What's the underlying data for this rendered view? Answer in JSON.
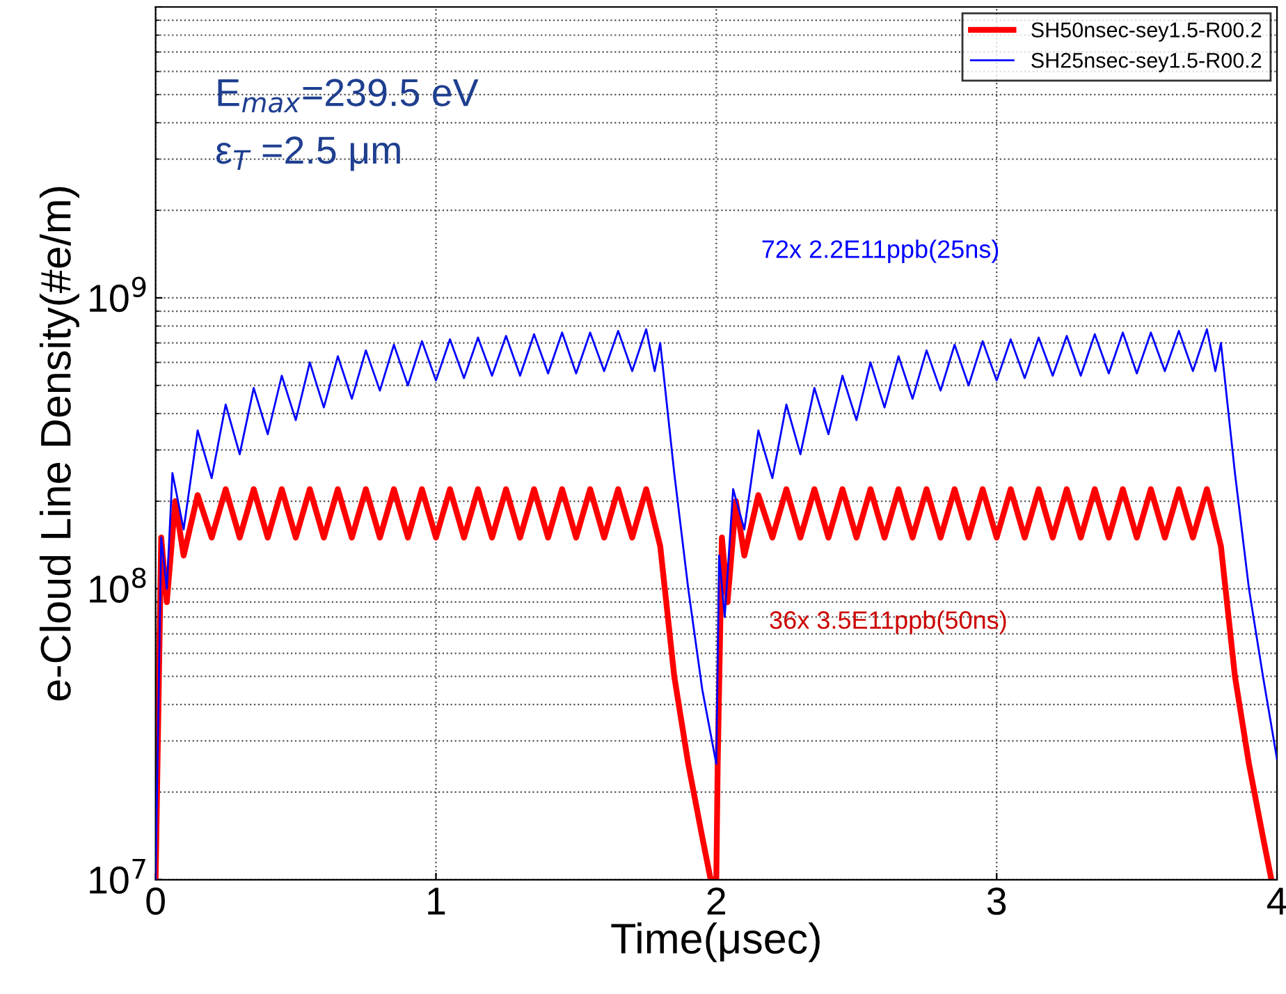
{
  "chart_data": {
    "type": "line",
    "xlabel": "Time(μsec)",
    "ylabel": "e-Cloud Line Density(#e/m)",
    "log": "y",
    "grid": true,
    "legend": "top right",
    "xlim": [
      0,
      4
    ],
    "xticks": [
      0,
      1,
      2,
      3,
      4
    ],
    "ylim": [
      10000000.0,
      10000000000.0
    ],
    "yticks": [
      {
        "value": 10000000.0,
        "label": "10$^{7}$"
      },
      {
        "value": 100000000.0,
        "label": "10$^{8}$"
      },
      {
        "value": 1000000000.0,
        "label": "10$^{9}$"
      },
      {
        "value": 10000000000.0,
        "label": null
      }
    ],
    "annotations": [
      "E$_{max}$=239.5 eV",
      "ε$_{T}$ =2.5 μm",
      "72x 2.2E11ppb(25ns)",
      "36x 3.5E11ppb(50ns)"
    ],
    "series": [
      {
        "name": "SH50nsec-sey1.5-R00.2",
        "color": "#ff0000",
        "x": [
          0,
          0.02,
          0.04,
          0.07,
          0.1,
          0.15,
          0.2,
          0.25,
          0.3,
          0.35,
          0.4,
          0.45,
          0.5,
          0.55,
          0.6,
          0.65,
          0.7,
          0.75,
          0.8,
          0.85,
          0.9,
          0.95,
          1,
          1.05,
          1.1,
          1.15,
          1.2,
          1.25,
          1.3,
          1.35,
          1.4,
          1.45,
          1.5,
          1.55,
          1.6,
          1.65,
          1.7,
          1.75,
          1.8,
          1.85,
          1.9,
          1.95,
          1.98,
          2.0,
          2.005,
          2.02,
          2.04,
          2.07,
          2.1,
          2.15,
          2.2,
          2.25,
          2.3,
          2.35,
          2.4,
          2.45,
          2.5,
          2.55,
          2.6,
          2.65,
          2.7,
          2.75,
          2.8,
          2.85,
          2.9,
          2.95,
          3,
          3.05,
          3.1,
          3.15,
          3.2,
          3.25,
          3.3,
          3.35,
          3.4,
          3.45,
          3.5,
          3.55,
          3.6,
          3.65,
          3.7,
          3.75,
          3.8,
          3.85,
          3.9,
          3.95,
          3.98
        ],
        "values": [
          10000000.0,
          150000000.0,
          90000000.0,
          200000000.0,
          130000000.0,
          210000000.0,
          150000000.0,
          220000000.0,
          150000000.0,
          220000000.0,
          150000000.0,
          220000000.0,
          150000000.0,
          220000000.0,
          150000000.0,
          220000000.0,
          150000000.0,
          220000000.0,
          150000000.0,
          220000000.0,
          150000000.0,
          220000000.0,
          150000000.0,
          220000000.0,
          150000000.0,
          220000000.0,
          150000000.0,
          220000000.0,
          150000000.0,
          220000000.0,
          150000000.0,
          220000000.0,
          150000000.0,
          220000000.0,
          150000000.0,
          220000000.0,
          150000000.0,
          220000000.0,
          140000000.0,
          50000000.0,
          25000000.0,
          14000000.0,
          10000000.0,
          10000000.0,
          25000000.0,
          150000000.0,
          90000000.0,
          200000000.0,
          130000000.0,
          210000000.0,
          150000000.0,
          220000000.0,
          150000000.0,
          220000000.0,
          150000000.0,
          220000000.0,
          150000000.0,
          220000000.0,
          150000000.0,
          220000000.0,
          150000000.0,
          220000000.0,
          150000000.0,
          220000000.0,
          150000000.0,
          220000000.0,
          150000000.0,
          220000000.0,
          150000000.0,
          220000000.0,
          150000000.0,
          220000000.0,
          150000000.0,
          220000000.0,
          150000000.0,
          220000000.0,
          150000000.0,
          220000000.0,
          150000000.0,
          220000000.0,
          150000000.0,
          220000000.0,
          140000000.0,
          50000000.0,
          25000000.0,
          14000000.0,
          10000000.0
        ]
      },
      {
        "name": "SH25nsec-sey1.5-R00.2",
        "color": "#0000ff",
        "x": [
          0,
          0.02,
          0.04,
          0.06,
          0.1,
          0.15,
          0.2,
          0.25,
          0.3,
          0.35,
          0.4,
          0.45,
          0.5,
          0.55,
          0.6,
          0.65,
          0.7,
          0.75,
          0.8,
          0.85,
          0.9,
          0.95,
          1,
          1.05,
          1.1,
          1.15,
          1.2,
          1.25,
          1.3,
          1.35,
          1.4,
          1.45,
          1.5,
          1.55,
          1.6,
          1.65,
          1.7,
          1.75,
          1.78,
          1.8,
          1.85,
          1.9,
          1.95,
          2.0,
          2.01,
          2.03,
          2.06,
          2.1,
          2.15,
          2.2,
          2.25,
          2.3,
          2.35,
          2.4,
          2.45,
          2.5,
          2.55,
          2.6,
          2.65,
          2.7,
          2.75,
          2.8,
          2.85,
          2.9,
          2.95,
          3,
          3.05,
          3.1,
          3.15,
          3.2,
          3.25,
          3.3,
          3.35,
          3.4,
          3.45,
          3.5,
          3.55,
          3.6,
          3.65,
          3.7,
          3.75,
          3.78,
          3.8,
          3.85,
          3.9,
          3.95,
          4.0
        ],
        "values": [
          10000000.0,
          150000000.0,
          100000000.0,
          250000000.0,
          160000000.0,
          350000000.0,
          240000000.0,
          430000000.0,
          290000000.0,
          490000000.0,
          340000000.0,
          540000000.0,
          380000000.0,
          600000000.0,
          420000000.0,
          630000000.0,
          450000000.0,
          660000000.0,
          480000000.0,
          690000000.0,
          500000000.0,
          710000000.0,
          520000000.0,
          720000000.0,
          530000000.0,
          730000000.0,
          540000000.0,
          740000000.0,
          540000000.0,
          750000000.0,
          550000000.0,
          760000000.0,
          550000000.0,
          760000000.0,
          560000000.0,
          770000000.0,
          560000000.0,
          780000000.0,
          560000000.0,
          700000000.0,
          250000000.0,
          100000000.0,
          45000000.0,
          25000000.0,
          130000000.0,
          80000000.0,
          220000000.0,
          160000000.0,
          350000000.0,
          240000000.0,
          430000000.0,
          290000000.0,
          490000000.0,
          340000000.0,
          540000000.0,
          380000000.0,
          600000000.0,
          420000000.0,
          630000000.0,
          450000000.0,
          660000000.0,
          480000000.0,
          690000000.0,
          500000000.0,
          710000000.0,
          520000000.0,
          720000000.0,
          530000000.0,
          730000000.0,
          540000000.0,
          740000000.0,
          540000000.0,
          750000000.0,
          550000000.0,
          760000000.0,
          550000000.0,
          760000000.0,
          560000000.0,
          770000000.0,
          560000000.0,
          780000000.0,
          560000000.0,
          700000000.0,
          250000000.0,
          100000000.0,
          50000000.0,
          26000000.0
        ]
      }
    ]
  }
}
